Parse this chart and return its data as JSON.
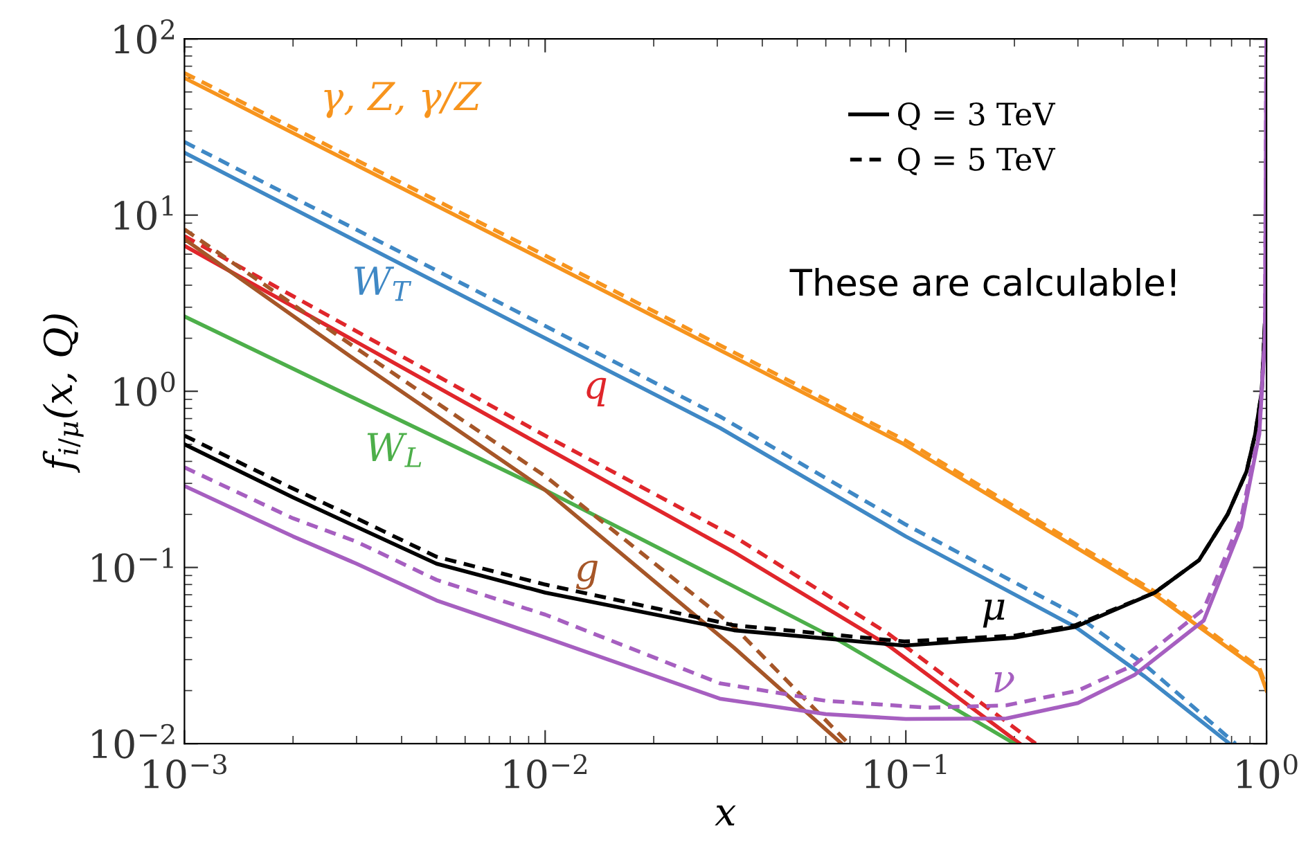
{
  "chart_data": {
    "type": "line",
    "xlabel": "x",
    "ylabel": "f$_{i/μ}$(x, Q)",
    "log": "xy",
    "grid": false,
    "legend": "top right",
    "xlim": [
      0.001,
      1
    ],
    "ylim": [
      0.01,
      100
    ],
    "xticks": [
      {
        "value": 0.001,
        "label": "10$^{−3}$"
      },
      {
        "value": 0.01,
        "label": "10$^{−2}$"
      },
      {
        "value": 0.1,
        "label": "10$^{−1}$"
      },
      {
        "value": 1,
        "label": "10$^{0}$"
      }
    ],
    "yticks": [
      {
        "value": 0.01,
        "label": "10$^{−2}$"
      },
      {
        "value": 0.1,
        "label": "10$^{−1}$"
      },
      {
        "value": 1,
        "label": "10$^{0}$"
      },
      {
        "value": 10,
        "label": "10$^{1}$"
      },
      {
        "value": 100,
        "label": "10$^{2}$"
      }
    ],
    "series": [
      {
        "color": "#f7941d",
        "line_style": "solid",
        "x": [
          0.001,
          0.01,
          0.099,
          0.49,
          0.955,
          1.0
        ],
        "values": [
          60,
          5.5,
          0.5,
          0.07,
          0.026,
          0.02
        ]
      },
      {
        "color": "#f7941d",
        "line_style": "dashed",
        "x": [
          0.001,
          0.01,
          0.099,
          0.49,
          0.955,
          1.0
        ],
        "values": [
          64,
          5.9,
          0.53,
          0.073,
          0.027,
          0.021
        ]
      },
      {
        "color": "#3f88c5",
        "line_style": "solid",
        "x": [
          0.001,
          0.01,
          0.0305,
          0.1,
          0.295,
          0.46,
          0.79
        ],
        "values": [
          22.6,
          2.0,
          0.62,
          0.15,
          0.046,
          0.024,
          0.01
        ]
      },
      {
        "color": "#3f88c5",
        "line_style": "dashed",
        "x": [
          0.001,
          0.01,
          0.0305,
          0.1,
          0.295,
          0.46,
          0.82
        ],
        "values": [
          26,
          2.35,
          0.72,
          0.175,
          0.054,
          0.028,
          0.01
        ]
      },
      {
        "color": "#e0262b",
        "line_style": "solid",
        "x": [
          0.001,
          0.01,
          0.0334,
          0.0895,
          0.207
        ],
        "values": [
          6.7,
          0.48,
          0.122,
          0.036,
          0.01
        ]
      },
      {
        "color": "#e0262b",
        "line_style": "dashed",
        "x": [
          0.001,
          0.01,
          0.0334,
          0.0895,
          0.229
        ],
        "values": [
          7.6,
          0.56,
          0.15,
          0.042,
          0.01
        ]
      },
      {
        "color": "#4daf4a",
        "line_style": "solid",
        "x": [
          0.001,
          0.01,
          0.0334,
          0.066,
          0.2
        ],
        "values": [
          2.66,
          0.275,
          0.078,
          0.038,
          0.01
        ]
      },
      {
        "color": "#a65628",
        "line_style": "solid",
        "x": [
          0.001,
          0.003,
          0.01,
          0.0334,
          0.0664
        ],
        "values": [
          7.3,
          1.49,
          0.275,
          0.035,
          0.01
        ]
      },
      {
        "color": "#a65628",
        "line_style": "dashed",
        "x": [
          0.001,
          0.003,
          0.01,
          0.0334,
          0.0694
        ],
        "values": [
          8.3,
          1.75,
          0.33,
          0.046,
          0.01
        ]
      },
      {
        "name": "Q = 3 TeV",
        "color": "#000000",
        "line_style": "solid",
        "x": [
          0.001,
          0.002,
          0.003,
          0.005,
          0.01,
          0.0334,
          0.099,
          0.2,
          0.295,
          0.49,
          0.65,
          0.78,
          0.88,
          0.93,
          0.97,
          0.99
        ],
        "values": [
          0.5,
          0.25,
          0.17,
          0.105,
          0.072,
          0.044,
          0.036,
          0.04,
          0.046,
          0.072,
          0.11,
          0.2,
          0.35,
          0.57,
          1.0,
          2.5
        ]
      },
      {
        "name": "Q = 5 TeV",
        "color": "#000000",
        "line_style": "dashed",
        "x": [
          0.001,
          0.002,
          0.003,
          0.005,
          0.01,
          0.0334,
          0.099,
          0.2,
          0.295,
          0.49,
          0.65,
          0.78,
          0.88,
          0.93,
          0.97,
          0.99
        ],
        "values": [
          0.56,
          0.28,
          0.19,
          0.115,
          0.08,
          0.047,
          0.038,
          0.041,
          0.047,
          0.072,
          0.11,
          0.2,
          0.35,
          0.57,
          1.0,
          2.5
        ]
      },
      {
        "color": "#a65fc0",
        "line_style": "solid",
        "x": [
          0.001,
          0.002,
          0.003,
          0.005,
          0.01,
          0.0305,
          0.06,
          0.1,
          0.19,
          0.3,
          0.43,
          0.67,
          0.85,
          0.955,
          0.99,
          0.999
        ],
        "values": [
          0.29,
          0.15,
          0.105,
          0.065,
          0.04,
          0.018,
          0.0147,
          0.0138,
          0.0139,
          0.017,
          0.0245,
          0.05,
          0.17,
          0.57,
          2,
          100
        ]
      },
      {
        "color": "#a65fc0",
        "line_style": "dashed",
        "x": [
          0.001,
          0.002,
          0.003,
          0.005,
          0.01,
          0.0305,
          0.06,
          0.115,
          0.19,
          0.3,
          0.43,
          0.67,
          0.85,
          0.955,
          0.99,
          0.999
        ],
        "values": [
          0.37,
          0.19,
          0.14,
          0.085,
          0.054,
          0.022,
          0.0175,
          0.016,
          0.0165,
          0.02,
          0.028,
          0.058,
          0.19,
          0.6,
          2.1,
          100
        ]
      }
    ],
    "annotations": [
      "γ, Z, γ/Z",
      "W$_{T}$",
      "q",
      "W$_{L}$",
      "g",
      "μ",
      "ν",
      "These are calculable!"
    ]
  }
}
